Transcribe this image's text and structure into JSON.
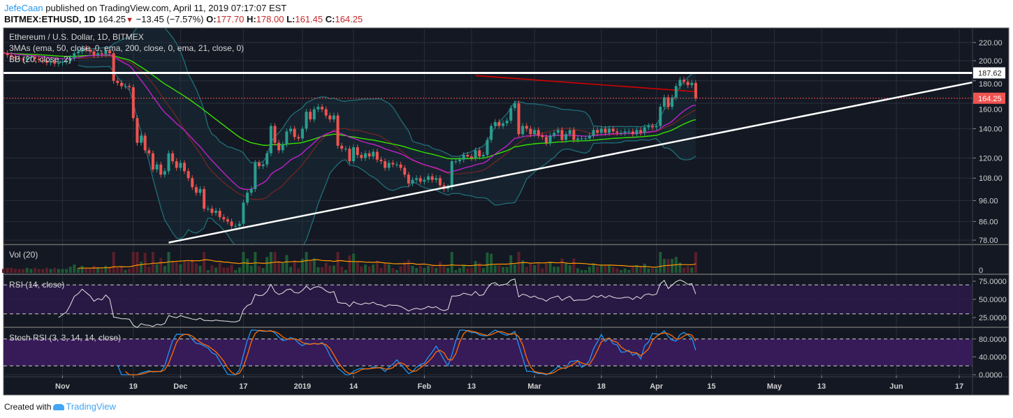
{
  "header": {
    "author": "JefeCaan",
    "published": "published on TradingView.com, April 11, 2019 07:17:07 EST",
    "symbol": "BITMEX:ETHUSD, 1D",
    "last": "164.25",
    "change": "−13.45 (−7.57%)",
    "o_label": "O:",
    "o": "177.70",
    "h_label": "H:",
    "h": "178.00",
    "l_label": "L:",
    "l": "161.45",
    "c_label": "C:",
    "c": "164.25"
  },
  "legend": {
    "title": "Ethereum / U.S. Dollar, 1D, BITMEX",
    "mas": "3MAs (ema, 50, close, 0, ema, 200, close, 0, ema, 21, close, 0)",
    "bb": "BB (20, close, 2)"
  },
  "panes": {
    "vol": "Vol (20)",
    "rsi": "RSI (14, close)",
    "stoch": "Stoch RSI (3, 3, 14, 14, close)"
  },
  "footer": {
    "created": "Created with",
    "brand": "TradingView"
  },
  "chart_data": {
    "type": "candlestick",
    "title": "Ethereum / U.S. Dollar, 1D, BITMEX",
    "start_date": "2018-10-17",
    "first_open": 209,
    "closes": [
      208,
      206,
      204,
      203,
      202,
      201,
      203,
      204,
      202,
      201,
      200,
      198,
      199,
      197,
      198,
      199,
      200,
      203,
      208,
      210,
      214,
      212,
      210,
      206,
      208,
      207,
      211,
      208,
      180,
      178,
      175,
      175,
      174,
      148,
      130,
      135,
      125,
      123,
      113,
      116,
      110,
      112,
      123,
      118,
      114,
      117,
      112,
      108,
      103,
      100,
      102,
      92,
      92,
      90,
      91,
      88,
      87,
      86,
      84,
      84,
      85,
      95,
      100,
      102,
      117,
      115,
      116,
      123,
      142,
      130,
      125,
      129,
      138,
      140,
      134,
      133,
      140,
      153,
      147,
      155,
      157,
      155,
      150,
      147,
      150,
      128,
      126,
      126,
      118,
      127,
      122,
      120,
      123,
      121,
      124,
      119,
      118,
      114,
      117,
      116,
      116,
      114,
      110,
      105,
      107,
      108,
      106,
      107,
      109,
      107,
      108,
      104,
      102,
      103,
      118,
      118,
      119,
      122,
      121,
      120,
      125,
      121,
      122,
      132,
      142,
      145,
      142,
      144,
      146,
      156,
      160,
      136,
      142,
      140,
      136,
      139,
      135,
      134,
      130,
      135,
      137,
      139,
      132,
      136,
      139,
      132,
      133,
      133,
      133,
      135,
      139,
      137,
      140,
      137,
      140,
      138,
      137,
      137,
      138,
      138,
      136,
      139,
      137,
      141,
      142,
      141,
      142,
      157,
      165,
      157,
      165,
      175,
      181,
      179,
      176,
      178,
      164.25
    ],
    "price_axis": {
      "scale": "log",
      "ticks": [
        {
          "value": 220,
          "label": "220.00"
        },
        {
          "value": 200,
          "label": "200.00"
        },
        {
          "value": 180,
          "label": "180.00"
        },
        {
          "value": 160,
          "label": "160.00"
        },
        {
          "value": 140,
          "label": "140.00"
        },
        {
          "value": 120,
          "label": "120.00"
        },
        {
          "value": 108,
          "label": "108.00"
        },
        {
          "value": 96,
          "label": "96.00"
        },
        {
          "value": 86,
          "label": "86.00"
        },
        {
          "value": 78,
          "label": "78.00"
        }
      ]
    },
    "x_ticks": [
      {
        "label": "Nov",
        "day": 15
      },
      {
        "label": "19",
        "day": 33
      },
      {
        "label": "Dec",
        "day": 45
      },
      {
        "label": "17",
        "day": 61
      },
      {
        "label": "2019",
        "day": 76
      },
      {
        "label": "14",
        "day": 89
      },
      {
        "label": "Feb",
        "day": 107
      },
      {
        "label": "13",
        "day": 119
      },
      {
        "label": "Mar",
        "day": 135
      },
      {
        "label": "18",
        "day": 152
      },
      {
        "label": "Apr",
        "day": 166
      },
      {
        "label": "15",
        "day": 180
      },
      {
        "label": "May",
        "day": 196
      },
      {
        "label": "13",
        "day": 208
      },
      {
        "label": "Jun",
        "day": 227
      },
      {
        "label": "17",
        "day": 243
      }
    ],
    "resistance_line": {
      "value": 187.62,
      "label": "187.62"
    },
    "last_price": {
      "value": 164.25,
      "label": "164.25"
    },
    "trendline": {
      "start_day": 42,
      "start_price": 77,
      "end_day": 247,
      "end_price": 179
    },
    "ema200_segment": {
      "start_day": 120,
      "start_price": 185,
      "end_day": 176,
      "end_price": 170
    },
    "vol_axis": {
      "label": "0"
    },
    "rsi_axis": {
      "ticks": [
        {
          "value": 75,
          "label": "75.0000"
        },
        {
          "value": 50,
          "label": "50.0000"
        },
        {
          "value": 25,
          "label": "25.0000"
        }
      ],
      "band": [
        30,
        70
      ]
    },
    "stoch_axis": {
      "ticks": [
        {
          "value": 80,
          "label": "80.0000"
        },
        {
          "value": 40,
          "label": "40.0000"
        },
        {
          "value": 0,
          "label": "0.0000"
        }
      ],
      "band": [
        20,
        80
      ]
    },
    "colors": {
      "up": "#2a9d8f",
      "down": "#ef5350",
      "ema50": "#36e000",
      "ema21": "#c020c8",
      "ema200": "#d50000",
      "bb_basis": "#7a2424",
      "bb_band": "#1f6f78",
      "rsi": "#e6e6e6",
      "stoch_k": "#2196f3",
      "stoch_d": "#ff6d00",
      "vol_ma": "#ff9800"
    }
  }
}
